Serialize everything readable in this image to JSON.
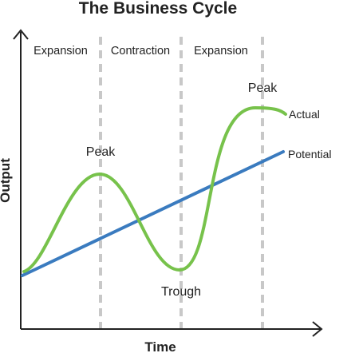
{
  "title": "The Business Cycle",
  "x_axis_label": "Time",
  "y_axis_label": "Output",
  "phases": [
    {
      "label": "Expansion"
    },
    {
      "label": "Contraction"
    },
    {
      "label": "Expansion"
    }
  ],
  "annotations": {
    "peak_1": "Peak",
    "trough": "Trough",
    "peak_2": "Peak"
  },
  "lines": {
    "actual": {
      "label": "Actual",
      "color": "#77c24b"
    },
    "potential": {
      "label": "Potential",
      "color": "#3a7bbf"
    }
  },
  "colors": {
    "axis": "#222222",
    "divider": "#c8c8c8"
  }
}
